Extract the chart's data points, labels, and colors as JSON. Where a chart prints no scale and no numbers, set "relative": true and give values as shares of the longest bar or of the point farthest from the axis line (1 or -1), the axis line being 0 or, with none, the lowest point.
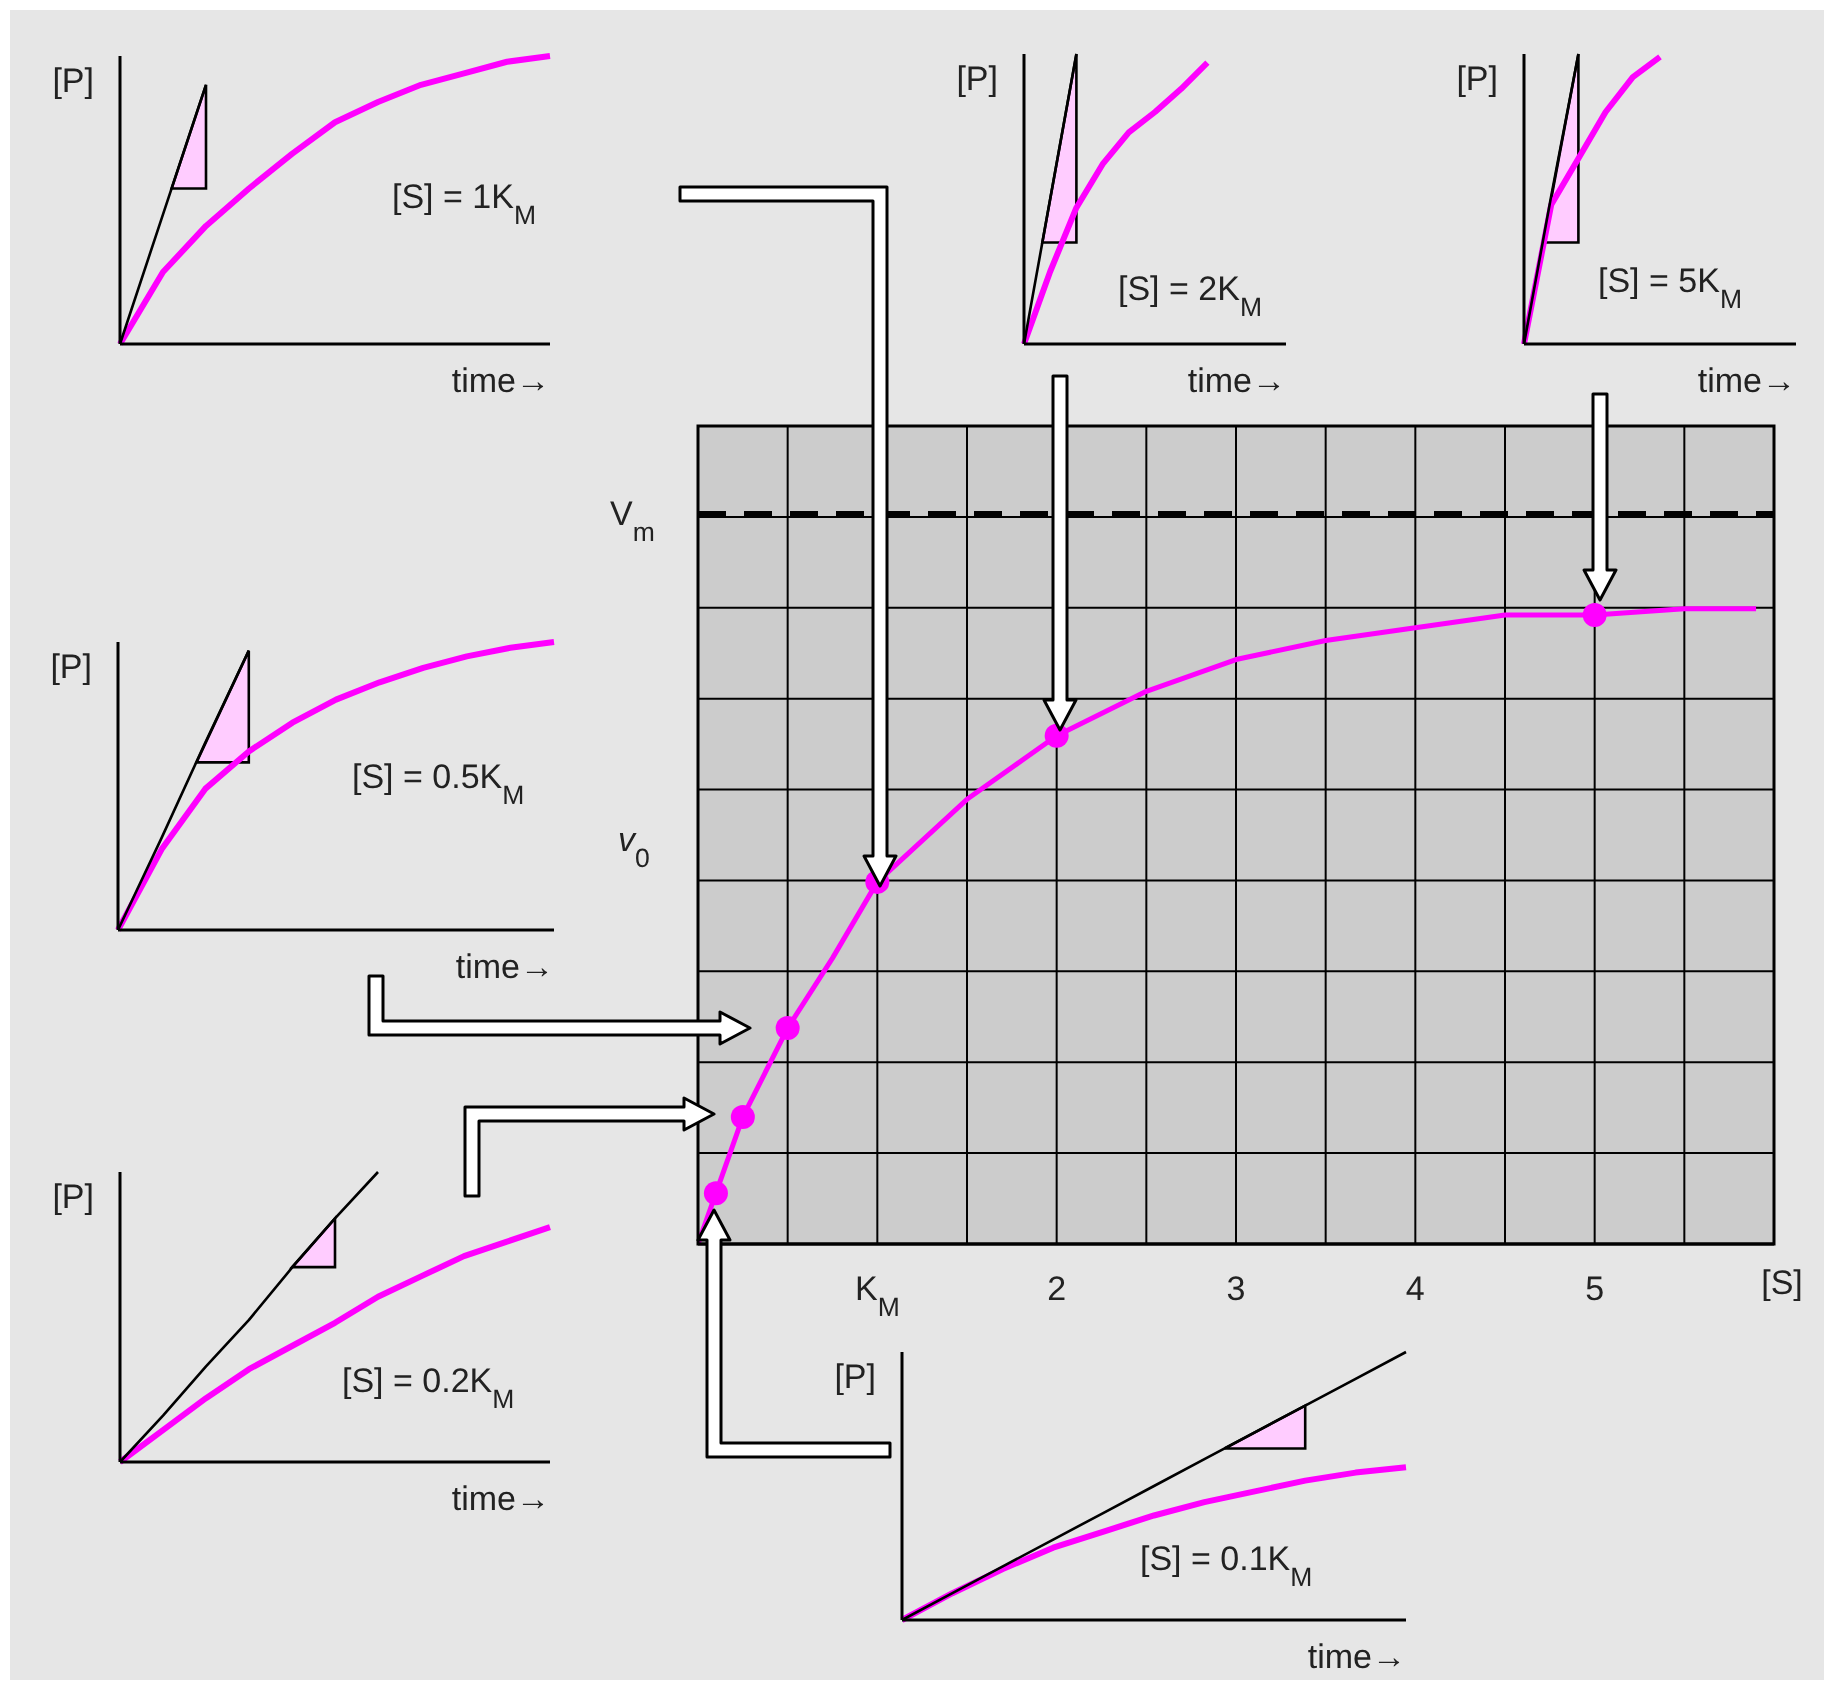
{
  "chart_data": [
    {
      "type": "line",
      "relative": true,
      "categories": [
        null,
        null,
        null,
        null,
        null,
        null,
        null,
        null,
        null,
        null,
        null
      ],
      "xlabel": "time→",
      "ylabel": "[P]",
      "annotations": [
        "[S] = 1K$_{M}$"
      ],
      "series": [
        {
          "color": "#ff00ff",
          "values": [
            0,
            0.25,
            0.41,
            0.54,
            0.66,
            0.77,
            0.84,
            0.9,
            0.94,
            0.98,
            1.0
          ]
        },
        {
          "color": "#000000",
          "values": [
            0,
            0.45,
            0.9,
            null,
            null,
            null,
            null,
            null,
            null,
            null,
            null
          ]
        }
      ]
    },
    {
      "type": "line",
      "relative": true,
      "categories": [
        null,
        null,
        null,
        null,
        null,
        null,
        null,
        null,
        null,
        null,
        null
      ],
      "xlabel": "time→",
      "ylabel": "[P]",
      "annotations": [
        "[S] = 2K$_{M}$"
      ],
      "series": [
        {
          "color": "#ff00ff",
          "values": [
            0,
            0.25,
            0.47,
            0.62,
            0.73,
            0.8,
            0.88,
            0.97,
            null,
            null,
            null
          ]
        },
        {
          "color": "#000000",
          "values": [
            0,
            0.5,
            1.0,
            null,
            null,
            null,
            null,
            null,
            null,
            null,
            null
          ]
        }
      ]
    },
    {
      "type": "line",
      "relative": true,
      "categories": [
        null,
        null,
        null,
        null,
        null,
        null,
        null,
        null,
        null,
        null,
        null
      ],
      "xlabel": "time→",
      "ylabel": "[P]",
      "annotations": [
        "[S] = 5K$_{M}$"
      ],
      "series": [
        {
          "color": "#ff00ff",
          "values": [
            0,
            0.48,
            0.64,
            0.8,
            0.92,
            0.99,
            null,
            null,
            null,
            null,
            null
          ]
        },
        {
          "color": "#000000",
          "values": [
            0,
            0.51,
            1.0,
            null,
            null,
            null,
            null,
            null,
            null,
            null,
            null
          ]
        }
      ]
    },
    {
      "type": "line",
      "relative": true,
      "categories": [
        null,
        null,
        null,
        null,
        null,
        null,
        null,
        null,
        null,
        null,
        null
      ],
      "xlabel": "time→",
      "ylabel": "[P]",
      "annotations": [
        "[S] = 0.5K$_{M}$"
      ],
      "series": [
        {
          "color": "#ff00ff",
          "values": [
            0,
            0.28,
            0.49,
            0.62,
            0.72,
            0.8,
            0.86,
            0.91,
            0.95,
            0.98,
            1.0
          ]
        },
        {
          "color": "#000000",
          "values": [
            0,
            0.32,
            0.65,
            0.97,
            null,
            null,
            null,
            null,
            null,
            null,
            null
          ]
        }
      ]
    },
    {
      "type": "line",
      "relative": true,
      "xlabel": "[S]",
      "ylabel": "v$_{0}$",
      "xlim": [
        0,
        6
      ],
      "xticks": [
        {
          "value": 0.5,
          "label": null
        },
        {
          "value": 1,
          "label": "K$_{M}$"
        },
        {
          "value": 1.5,
          "label": null
        },
        2,
        {
          "value": 2.5,
          "label": null
        },
        3,
        {
          "value": 3.5,
          "label": null
        },
        4,
        {
          "value": 4.5,
          "label": null
        },
        5,
        {
          "value": 5.5,
          "label": null
        }
      ],
      "grid": true,
      "series": [
        {
          "type": "line",
          "color": "#ff00ff",
          "marker": "none",
          "x": [
            0,
            0.1,
            0.25,
            0.5,
            0.75,
            1,
            1.5,
            2,
            2.5,
            3,
            3.5,
            4,
            4.5,
            5,
            5.5,
            5.9
          ],
          "values": [
            0,
            0.08,
            0.2,
            0.34,
            0.45,
            0.57,
            0.7,
            0.8,
            0.87,
            0.92,
            0.95,
            0.97,
            0.99,
            0.99,
            1.0,
            1.0
          ]
        },
        {
          "type": "scatter",
          "color": "#ff00ff",
          "marker": "circle",
          "x": [
            0.1,
            0.25,
            0.5,
            1,
            2,
            5
          ],
          "values": [
            0.08,
            0.2,
            0.34,
            0.57,
            0.8,
            0.99
          ]
        }
      ],
      "ref_lines": [
        {
          "axis": "y",
          "value": 1.15,
          "label": "V$_{m}$",
          "color": "#000000",
          "line_style": "dashed"
        }
      ]
    },
    {
      "type": "line",
      "relative": true,
      "categories": [
        null,
        null,
        null,
        null,
        null,
        null,
        null,
        null,
        null,
        null,
        null
      ],
      "xlabel": "time→",
      "ylabel": "[P]",
      "annotations": [
        "[S] = 0.2K$_{M}$"
      ],
      "series": [
        {
          "color": "#ff00ff",
          "values": [
            0,
            0.11,
            0.22,
            0.32,
            0.4,
            0.48,
            0.57,
            0.64,
            0.71,
            0.76,
            0.81
          ]
        },
        {
          "color": "#000000",
          "values": [
            0,
            0.16,
            0.33,
            0.49,
            0.67,
            0.84,
            1.0,
            null,
            null,
            null,
            null
          ]
        }
      ]
    },
    {
      "type": "line",
      "relative": true,
      "categories": [
        null,
        null,
        null,
        null,
        null,
        null,
        null,
        null,
        null,
        null,
        null
      ],
      "xlabel": "time→",
      "ylabel": "[P]",
      "annotations": [
        "[S] = 0.1K$_{M}$"
      ],
      "series": [
        {
          "color": "#ff00ff",
          "values": [
            0,
            0.1,
            0.19,
            0.27,
            0.33,
            0.39,
            0.44,
            0.48,
            0.52,
            0.55,
            0.57
          ]
        },
        {
          "color": "#000000",
          "values": [
            0,
            0.1,
            0.2,
            0.3,
            0.4,
            0.5,
            0.6,
            0.7,
            0.8,
            0.9,
            1.0
          ]
        }
      ]
    }
  ]
}
